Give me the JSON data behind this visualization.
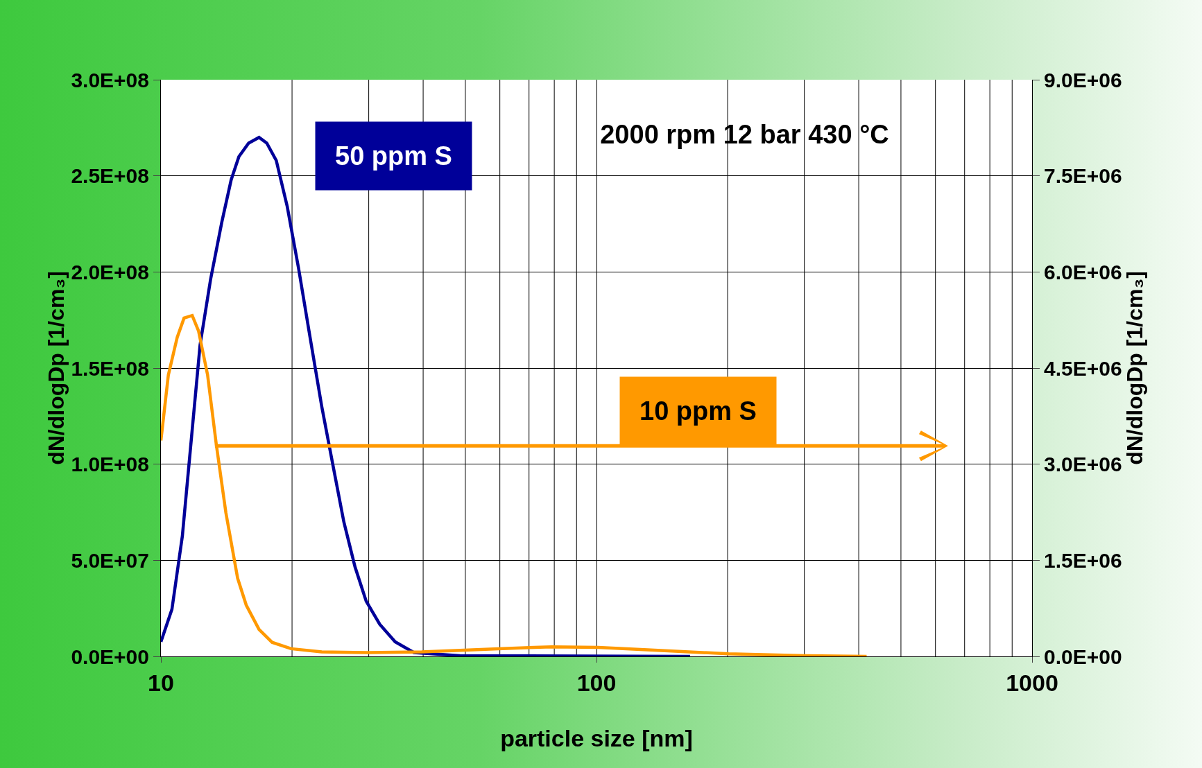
{
  "chart_data": {
    "type": "line",
    "title": "2000 rpm 12 bar 430 °C",
    "xlabel": "particle size [nm]",
    "ylabel": "dN/dlogDp [1/cm₃]",
    "y2label": "dN/dlogDp [1/cm₃]",
    "log": "x",
    "xlim": [
      10,
      1000
    ],
    "xticks": [
      10,
      100,
      1000
    ],
    "ylim": [
      0,
      300000000
    ],
    "yticks": [
      {
        "value": 0,
        "label": "0.0E+00"
      },
      {
        "value": 50000000,
        "label": "5.0E+07"
      },
      {
        "value": 100000000,
        "label": "1.0E+08"
      },
      {
        "value": 150000000,
        "label": "1.5E+08"
      },
      {
        "value": 200000000,
        "label": "2.0E+08"
      },
      {
        "value": 250000000,
        "label": "2.5E+08"
      },
      {
        "value": 300000000,
        "label": "3.0E+08"
      }
    ],
    "y2lim": [
      0,
      9000000
    ],
    "y2ticks": [
      {
        "value": 0,
        "label": "0.0E+00"
      },
      {
        "value": 1500000,
        "label": "1.5E+06"
      },
      {
        "value": 3000000,
        "label": "3.0E+06"
      },
      {
        "value": 4500000,
        "label": "4.5E+06"
      },
      {
        "value": 6000000,
        "label": "6.0E+06"
      },
      {
        "value": 7500000,
        "label": "7.5E+06"
      },
      {
        "value": 9000000,
        "label": "9.0E+06"
      }
    ],
    "grid": true,
    "legend": false,
    "marker": "none",
    "line_style": "solid",
    "series": [
      {
        "name": "50 ppm S",
        "color": "#000099",
        "x": [
          10,
          10.6,
          11.2,
          11.8,
          12.3,
          13,
          13.8,
          14.5,
          15.1,
          15.9,
          16.8,
          17.5,
          18.4,
          19.5,
          20.7,
          22,
          23.4,
          24.9,
          26.3,
          27.9,
          29.6,
          31.8,
          34.5,
          38.1,
          48.6,
          164
        ],
        "values": [
          7600000,
          24500000,
          62600000,
          118000000,
          162000000,
          196000000,
          226000000,
          248000000,
          260000000,
          267000000,
          270000000,
          267000000,
          258000000,
          234000000,
          202000000,
          166000000,
          130000000,
          98000000,
          70000000,
          46600000,
          28700000,
          16700000,
          7600000,
          2000000,
          400000,
          0
        ]
      },
      {
        "name": "10 ppm S",
        "color": "#ff9900",
        "axis": "y2",
        "x": [
          10,
          10.4,
          10.9,
          11.3,
          11.8,
          12.2,
          12.8,
          13.4,
          14.1,
          15,
          15.7,
          16.8,
          18,
          19.9,
          23.4,
          29.9,
          39.7,
          59.5,
          78.9,
          100.9,
          133.4,
          201,
          302,
          417
        ],
        "values": [
          3370000,
          4390000,
          4980000,
          5280000,
          5320000,
          5080000,
          4390000,
          3310000,
          2240000,
          1220000,
          800000,
          420000,
          220000,
          120000,
          70000,
          60000,
          70000,
          120000,
          150000,
          140000,
          100000,
          40000,
          10000,
          0
        ]
      }
    ]
  }
}
